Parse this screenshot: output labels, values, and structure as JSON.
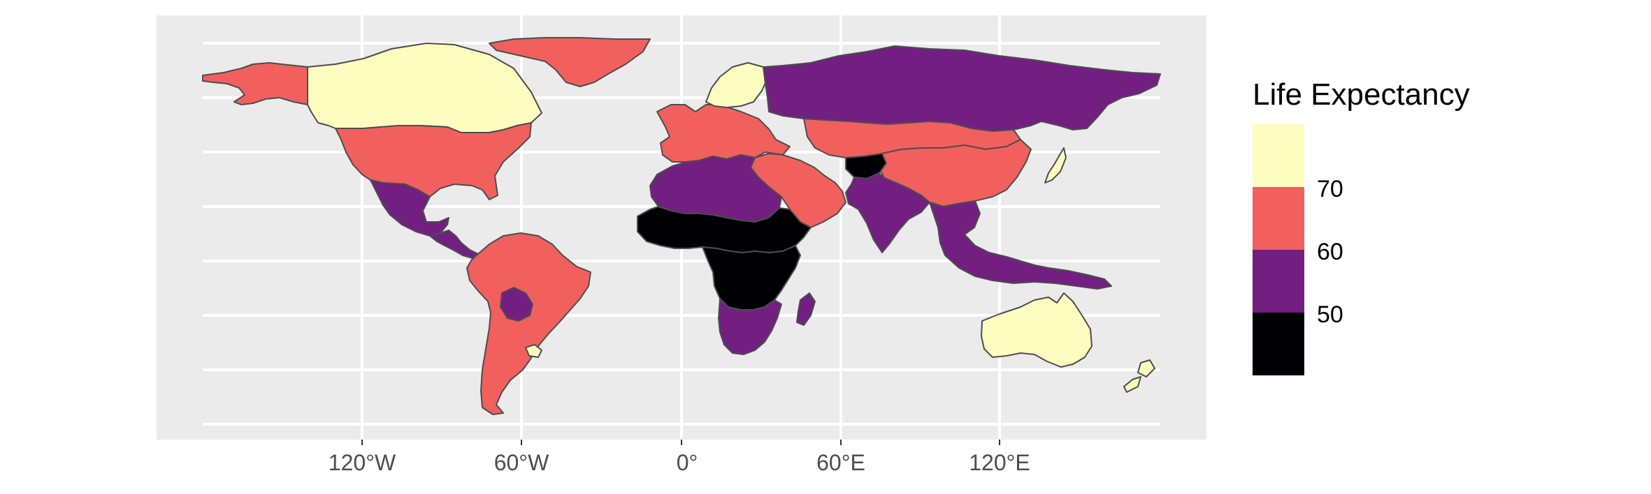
{
  "map": {
    "projection": "equirectangular",
    "panel_background": "#ebebeb",
    "grid_color": "#ffffff",
    "border_color": "#4d4d4d",
    "missing_color": "#7f7f7f",
    "x_ticks": [
      {
        "lon": -120,
        "label": "120°W"
      },
      {
        "lon": -60,
        "label": "60°W"
      },
      {
        "lon": 0,
        "label": "0°"
      },
      {
        "lon": 60,
        "label": "60°E"
      },
      {
        "lon": 120,
        "label": "120°E"
      }
    ],
    "legend": {
      "title": "Life Expectancy",
      "bins": [
        {
          "color": "#fcfdbf",
          "range": "≥70"
        },
        {
          "color": "#f1605d",
          "range": "60–70"
        },
        {
          "color": "#721f81",
          "range": "50–60"
        },
        {
          "color": "#000004",
          "range": "<50"
        }
      ],
      "break_labels": [
        "70",
        "60",
        "50"
      ]
    }
  },
  "regions": [
    {
      "name": "Alaska",
      "bin": "60–70"
    },
    {
      "name": "Canada",
      "bin": "≥70"
    },
    {
      "name": "Greenland",
      "bin": "60–70"
    },
    {
      "name": "United States",
      "bin": "60–70"
    },
    {
      "name": "Mexico",
      "bin": "50–60"
    },
    {
      "name": "Central America",
      "bin": "50–60"
    },
    {
      "name": "South America",
      "bin": "60–70"
    },
    {
      "name": "Bolivia",
      "bin": "50–60"
    },
    {
      "name": "Uruguay",
      "bin": "≥70"
    },
    {
      "name": "Western Europe",
      "bin": "60–70"
    },
    {
      "name": "Scandinavia",
      "bin": "≥70"
    },
    {
      "name": "Russia",
      "bin": "50–60"
    },
    {
      "name": "Kazakhstan & Mongolia",
      "bin": "60–70"
    },
    {
      "name": "China",
      "bin": "60–70"
    },
    {
      "name": "Japan",
      "bin": "≥70"
    },
    {
      "name": "Middle East",
      "bin": "60–70"
    },
    {
      "name": "Afghanistan",
      "bin": "<50"
    },
    {
      "name": "India",
      "bin": "50–60"
    },
    {
      "name": "North Africa",
      "bin": "50–60"
    },
    {
      "name": "Sahel",
      "bin": "<50"
    },
    {
      "name": "Central Africa",
      "bin": "<50"
    },
    {
      "name": "Southern Africa",
      "bin": "50–60"
    },
    {
      "name": "Madagascar",
      "bin": "50–60"
    },
    {
      "name": "Southeast Asia",
      "bin": "50–60"
    },
    {
      "name": "Australia",
      "bin": "≥70"
    },
    {
      "name": "New Zealand",
      "bin": "≥70"
    }
  ]
}
